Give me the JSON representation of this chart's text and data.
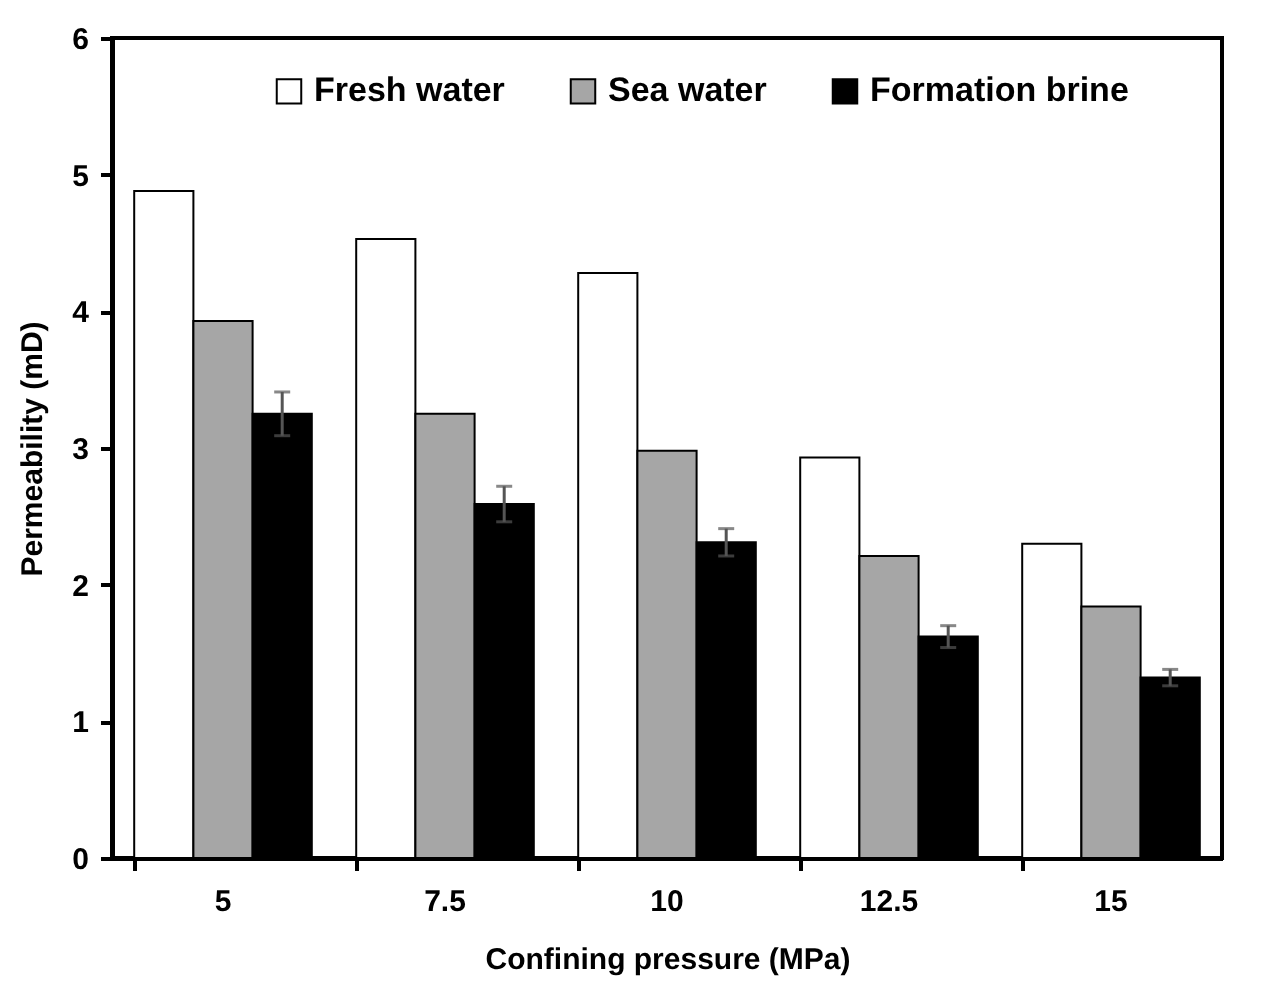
{
  "chart_data": {
    "type": "bar",
    "xlabel": "Confining pressure (MPa)",
    "ylabel": "Permeability (mD)",
    "categories": [
      "5",
      "7.5",
      "10",
      "12.5",
      "15"
    ],
    "series": [
      {
        "name": "Fresh water",
        "color": "#ffffff",
        "values": [
          4.88,
          4.53,
          4.28,
          2.93,
          2.3
        ]
      },
      {
        "name": "Sea water",
        "color": "#a6a6a6",
        "values": [
          3.93,
          3.25,
          2.98,
          2.21,
          1.84
        ]
      },
      {
        "name": "Formation brine",
        "color": "#000000",
        "values": [
          3.25,
          2.59,
          2.31,
          1.62,
          1.32
        ],
        "errors": [
          0.16,
          0.13,
          0.1,
          0.08,
          0.06
        ]
      }
    ],
    "ylim": [
      0,
      6
    ],
    "yticks": [
      0,
      1,
      2,
      3,
      4,
      5,
      6
    ],
    "grid": false,
    "legend": "top"
  }
}
